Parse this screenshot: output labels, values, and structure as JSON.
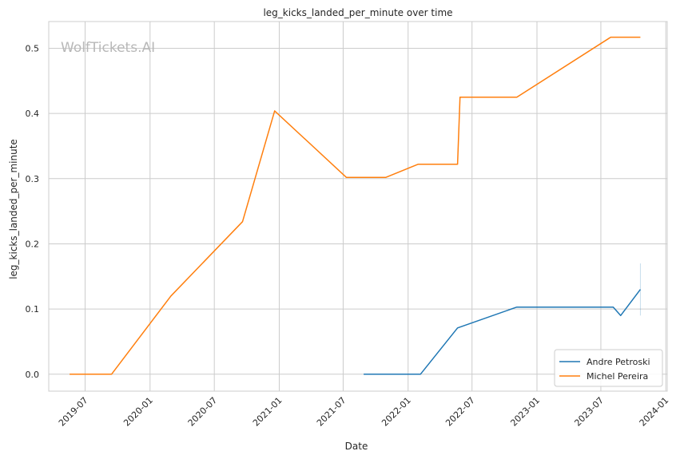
{
  "chart_data": {
    "type": "line",
    "title": "leg_kicks_landed_per_minute over time",
    "xlabel": "Date",
    "ylabel": "leg_kicks_landed_per_minute",
    "watermark": "WolfTickets.AI",
    "xlim": [
      "2019-03-20",
      "2024-01-05"
    ],
    "ylim": [
      -0.026,
      0.541
    ],
    "x_ticks": [
      "2019-07",
      "2020-01",
      "2020-07",
      "2021-01",
      "2021-07",
      "2022-01",
      "2022-07",
      "2023-01",
      "2023-07",
      "2024-01"
    ],
    "y_ticks": [
      "0.0",
      "0.1",
      "0.2",
      "0.3",
      "0.4",
      "0.5"
    ],
    "grid": true,
    "legend_position": "lower right",
    "series": [
      {
        "name": "Andre Petroski",
        "color": "#1f77b4",
        "x": [
          "2021-08-28",
          "2022-02-05",
          "2022-05-21",
          "2022-11-05",
          "2023-08-05",
          "2023-08-26",
          "2023-10-21"
        ],
        "y": [
          0.0,
          0.0,
          0.071,
          0.103,
          0.103,
          0.09,
          0.13
        ]
      },
      {
        "name": "Michel Pereira",
        "color": "#ff7f0e",
        "x": [
          "2019-05-18",
          "2019-09-14",
          "2020-02-29",
          "2020-09-19",
          "2020-12-19",
          "2021-07-10",
          "2021-10-30",
          "2022-01-29",
          "2022-05-21",
          "2022-05-28",
          "2022-11-05",
          "2023-07-29",
          "2023-10-21"
        ],
        "y": [
          0.0,
          0.0,
          0.12,
          0.234,
          0.404,
          0.302,
          0.302,
          0.322,
          0.322,
          0.425,
          0.425,
          0.517,
          0.517
        ]
      }
    ],
    "error_bar": {
      "x": "2023-10-21",
      "y_low": 0.09,
      "y_high": 0.17,
      "color": "#1f77b4"
    }
  }
}
